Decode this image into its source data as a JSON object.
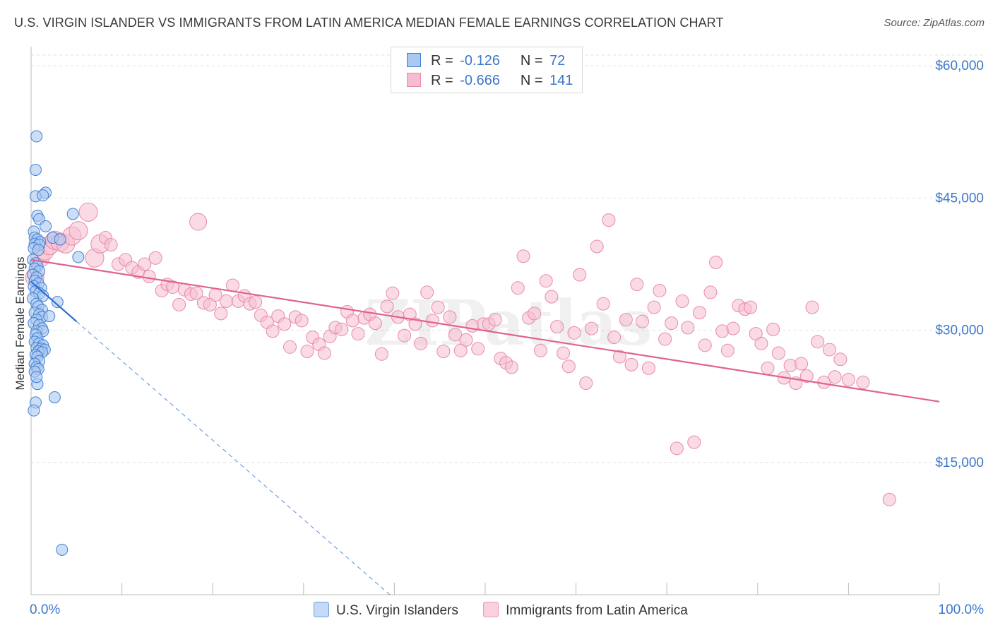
{
  "header": {
    "title": "U.S. VIRGIN ISLANDER VS IMMIGRANTS FROM LATIN AMERICA MEDIAN FEMALE EARNINGS CORRELATION CHART",
    "source": "Source: ZipAtlas.com"
  },
  "legend": {
    "r_label": "R =",
    "n_label": "N =",
    "rows": [
      {
        "r": "-0.126",
        "n": "72"
      },
      {
        "r": "-0.666",
        "n": "141"
      }
    ]
  },
  "colors": {
    "blue_fill": "#aac8f0",
    "blue_stroke": "#3f7fd6",
    "blue_line": "#2f6fd0",
    "pink_fill": "#f6bdd0",
    "pink_stroke": "#e88aaa",
    "pink_line": "#e0628f",
    "tick_label": "#3c78c8",
    "grid": "#e2e2e2"
  },
  "chart_data": {
    "type": "scatter",
    "title": "U.S. VIRGIN ISLANDER VS IMMIGRANTS FROM LATIN AMERICA MEDIAN FEMALE EARNINGS CORRELATION CHART",
    "xlabel": "",
    "ylabel": "Median Female Earnings",
    "xlim": [
      0,
      100
    ],
    "ylim": [
      0,
      62500
    ],
    "x_tick_labels": [
      "0.0%",
      "100.0%"
    ],
    "y_ticks": [
      15000,
      30000,
      45000,
      60000
    ],
    "y_tick_labels": [
      "$15,000",
      "$30,000",
      "$45,000",
      "$60,000"
    ],
    "grid": true,
    "legend_position": "top-center",
    "watermark": "ZIPatlas",
    "series": [
      {
        "name": "U.S. Virgin Islanders",
        "r": -0.126,
        "n": 72,
        "trend": {
          "x": [
            0.0,
            5.0
          ],
          "y": [
            35500,
            31000
          ],
          "dashed_extension_to": [
            39.5,
            0
          ]
        },
        "points": [
          [
            0.6,
            52000
          ],
          [
            0.5,
            48200
          ],
          [
            0.5,
            45200
          ],
          [
            1.6,
            45600
          ],
          [
            1.3,
            45300
          ],
          [
            4.6,
            43200
          ],
          [
            0.7,
            43000
          ],
          [
            0.9,
            42600
          ],
          [
            1.6,
            41800
          ],
          [
            0.3,
            41200
          ],
          [
            0.4,
            40500
          ],
          [
            0.7,
            40300
          ],
          [
            1.0,
            40000
          ],
          [
            0.4,
            39800
          ],
          [
            0.9,
            39700
          ],
          [
            0.3,
            39300
          ],
          [
            0.8,
            39100
          ],
          [
            2.4,
            40500
          ],
          [
            3.2,
            40300
          ],
          [
            5.2,
            38300
          ],
          [
            0.2,
            38000
          ],
          [
            0.5,
            37600
          ],
          [
            0.7,
            37300
          ],
          [
            0.4,
            37000
          ],
          [
            0.9,
            36700
          ],
          [
            0.2,
            36300
          ],
          [
            0.6,
            36000
          ],
          [
            0.4,
            35600
          ],
          [
            0.8,
            35300
          ],
          [
            0.3,
            35000
          ],
          [
            1.1,
            34800
          ],
          [
            0.5,
            34400
          ],
          [
            0.9,
            34200
          ],
          [
            1.3,
            33900
          ],
          [
            0.2,
            33600
          ],
          [
            2.9,
            33200
          ],
          [
            0.6,
            33000
          ],
          [
            0.8,
            32700
          ],
          [
            1.2,
            32300
          ],
          [
            0.4,
            32000
          ],
          [
            0.9,
            31800
          ],
          [
            1.2,
            31500
          ],
          [
            2.0,
            31600
          ],
          [
            0.6,
            31200
          ],
          [
            0.3,
            30800
          ],
          [
            0.9,
            30600
          ],
          [
            1.2,
            30200
          ],
          [
            0.6,
            29900
          ],
          [
            1.3,
            29900
          ],
          [
            0.5,
            29500
          ],
          [
            0.7,
            29100
          ],
          [
            0.4,
            28700
          ],
          [
            0.9,
            28500
          ],
          [
            1.3,
            28300
          ],
          [
            0.6,
            28000
          ],
          [
            1.1,
            27900
          ],
          [
            1.5,
            27800
          ],
          [
            0.8,
            27600
          ],
          [
            1.2,
            27500
          ],
          [
            0.5,
            27200
          ],
          [
            0.7,
            27000
          ],
          [
            0.9,
            26500
          ],
          [
            0.4,
            26200
          ],
          [
            0.6,
            25800
          ],
          [
            0.8,
            25600
          ],
          [
            0.4,
            25300
          ],
          [
            0.7,
            23900
          ],
          [
            2.6,
            22400
          ],
          [
            0.5,
            21800
          ],
          [
            0.3,
            20900
          ],
          [
            3.4,
            5100
          ],
          [
            0.6,
            24700
          ]
        ]
      },
      {
        "name": "Immigrants from Latin America",
        "r": -0.666,
        "n": 141,
        "trend": {
          "x": [
            0.0,
            100.0
          ],
          "y": [
            38000,
            21900
          ]
        },
        "points": [
          [
            0.4,
            36000
          ],
          [
            1.0,
            38200
          ],
          [
            1.5,
            39000
          ],
          [
            2.0,
            39600
          ],
          [
            2.6,
            40200
          ],
          [
            3.2,
            40000
          ],
          [
            3.8,
            39800
          ],
          [
            4.5,
            40700
          ],
          [
            5.2,
            41300
          ],
          [
            6.3,
            43400
          ],
          [
            7.0,
            38200
          ],
          [
            7.6,
            39800
          ],
          [
            8.2,
            40500
          ],
          [
            8.8,
            39700
          ],
          [
            9.6,
            37500
          ],
          [
            10.4,
            38000
          ],
          [
            11.1,
            37100
          ],
          [
            11.8,
            36600
          ],
          [
            12.5,
            37500
          ],
          [
            13.0,
            36100
          ],
          [
            13.7,
            38200
          ],
          [
            14.4,
            34500
          ],
          [
            15.0,
            35200
          ],
          [
            15.6,
            34900
          ],
          [
            16.3,
            32900
          ],
          [
            16.9,
            34600
          ],
          [
            17.6,
            34100
          ],
          [
            18.2,
            34200
          ],
          [
            18.4,
            42300
          ],
          [
            19.0,
            33100
          ],
          [
            19.7,
            32900
          ],
          [
            20.3,
            34000
          ],
          [
            20.9,
            31900
          ],
          [
            21.5,
            33300
          ],
          [
            22.2,
            35100
          ],
          [
            22.8,
            33300
          ],
          [
            23.5,
            33900
          ],
          [
            24.1,
            33000
          ],
          [
            24.7,
            33200
          ],
          [
            25.3,
            31700
          ],
          [
            26.0,
            30900
          ],
          [
            26.6,
            29900
          ],
          [
            27.2,
            31600
          ],
          [
            27.9,
            30700
          ],
          [
            28.5,
            28100
          ],
          [
            29.1,
            31500
          ],
          [
            29.8,
            31100
          ],
          [
            30.4,
            27600
          ],
          [
            31.0,
            29200
          ],
          [
            31.7,
            28400
          ],
          [
            32.3,
            27400
          ],
          [
            32.9,
            29300
          ],
          [
            33.5,
            30300
          ],
          [
            34.2,
            30100
          ],
          [
            34.8,
            32100
          ],
          [
            35.4,
            31100
          ],
          [
            36.0,
            29600
          ],
          [
            36.7,
            31400
          ],
          [
            37.3,
            31800
          ],
          [
            37.9,
            30800
          ],
          [
            38.6,
            27300
          ],
          [
            39.2,
            32700
          ],
          [
            39.8,
            34200
          ],
          [
            40.4,
            31500
          ],
          [
            41.1,
            29400
          ],
          [
            41.7,
            31800
          ],
          [
            42.3,
            30700
          ],
          [
            42.9,
            28500
          ],
          [
            43.6,
            34300
          ],
          [
            44.2,
            31100
          ],
          [
            44.8,
            32600
          ],
          [
            45.4,
            27600
          ],
          [
            46.1,
            31500
          ],
          [
            46.7,
            29500
          ],
          [
            47.3,
            27700
          ],
          [
            47.9,
            28900
          ],
          [
            48.6,
            30500
          ],
          [
            49.2,
            27900
          ],
          [
            49.8,
            30700
          ],
          [
            50.4,
            30700
          ],
          [
            51.1,
            31200
          ],
          [
            51.7,
            26800
          ],
          [
            52.3,
            26300
          ],
          [
            52.9,
            25800
          ],
          [
            53.6,
            34800
          ],
          [
            54.2,
            38400
          ],
          [
            54.8,
            31400
          ],
          [
            55.4,
            31900
          ],
          [
            56.1,
            27700
          ],
          [
            56.7,
            35600
          ],
          [
            57.3,
            33800
          ],
          [
            57.9,
            30400
          ],
          [
            58.6,
            27400
          ],
          [
            59.2,
            25900
          ],
          [
            59.8,
            29700
          ],
          [
            60.4,
            36300
          ],
          [
            61.1,
            24000
          ],
          [
            61.7,
            30200
          ],
          [
            62.3,
            39500
          ],
          [
            63.0,
            33000
          ],
          [
            63.6,
            42500
          ],
          [
            64.2,
            29200
          ],
          [
            64.8,
            27000
          ],
          [
            65.5,
            31200
          ],
          [
            66.1,
            26100
          ],
          [
            66.7,
            35200
          ],
          [
            67.3,
            31000
          ],
          [
            68.0,
            25700
          ],
          [
            68.6,
            32600
          ],
          [
            69.2,
            34500
          ],
          [
            69.8,
            29000
          ],
          [
            70.5,
            30800
          ],
          [
            71.1,
            16600
          ],
          [
            71.7,
            33300
          ],
          [
            72.3,
            30300
          ],
          [
            73.0,
            17300
          ],
          [
            73.6,
            32000
          ],
          [
            74.2,
            28300
          ],
          [
            74.8,
            34300
          ],
          [
            75.4,
            37700
          ],
          [
            76.1,
            29900
          ],
          [
            76.7,
            27700
          ],
          [
            77.3,
            30200
          ],
          [
            77.9,
            32800
          ],
          [
            78.6,
            32400
          ],
          [
            79.2,
            32600
          ],
          [
            79.8,
            29600
          ],
          [
            80.4,
            28500
          ],
          [
            81.1,
            25700
          ],
          [
            81.7,
            30100
          ],
          [
            82.3,
            27400
          ],
          [
            82.9,
            24600
          ],
          [
            83.6,
            26000
          ],
          [
            84.2,
            24000
          ],
          [
            84.8,
            26200
          ],
          [
            85.4,
            24800
          ],
          [
            86.0,
            32600
          ],
          [
            86.6,
            28700
          ],
          [
            87.3,
            24100
          ],
          [
            87.9,
            27800
          ],
          [
            88.5,
            24700
          ],
          [
            89.1,
            26700
          ],
          [
            90.0,
            24400
          ],
          [
            91.6,
            24100
          ],
          [
            94.5,
            10800
          ]
        ]
      }
    ]
  },
  "bottom_legend": {
    "items": [
      "U.S. Virgin Islanders",
      "Immigrants from Latin America"
    ]
  }
}
